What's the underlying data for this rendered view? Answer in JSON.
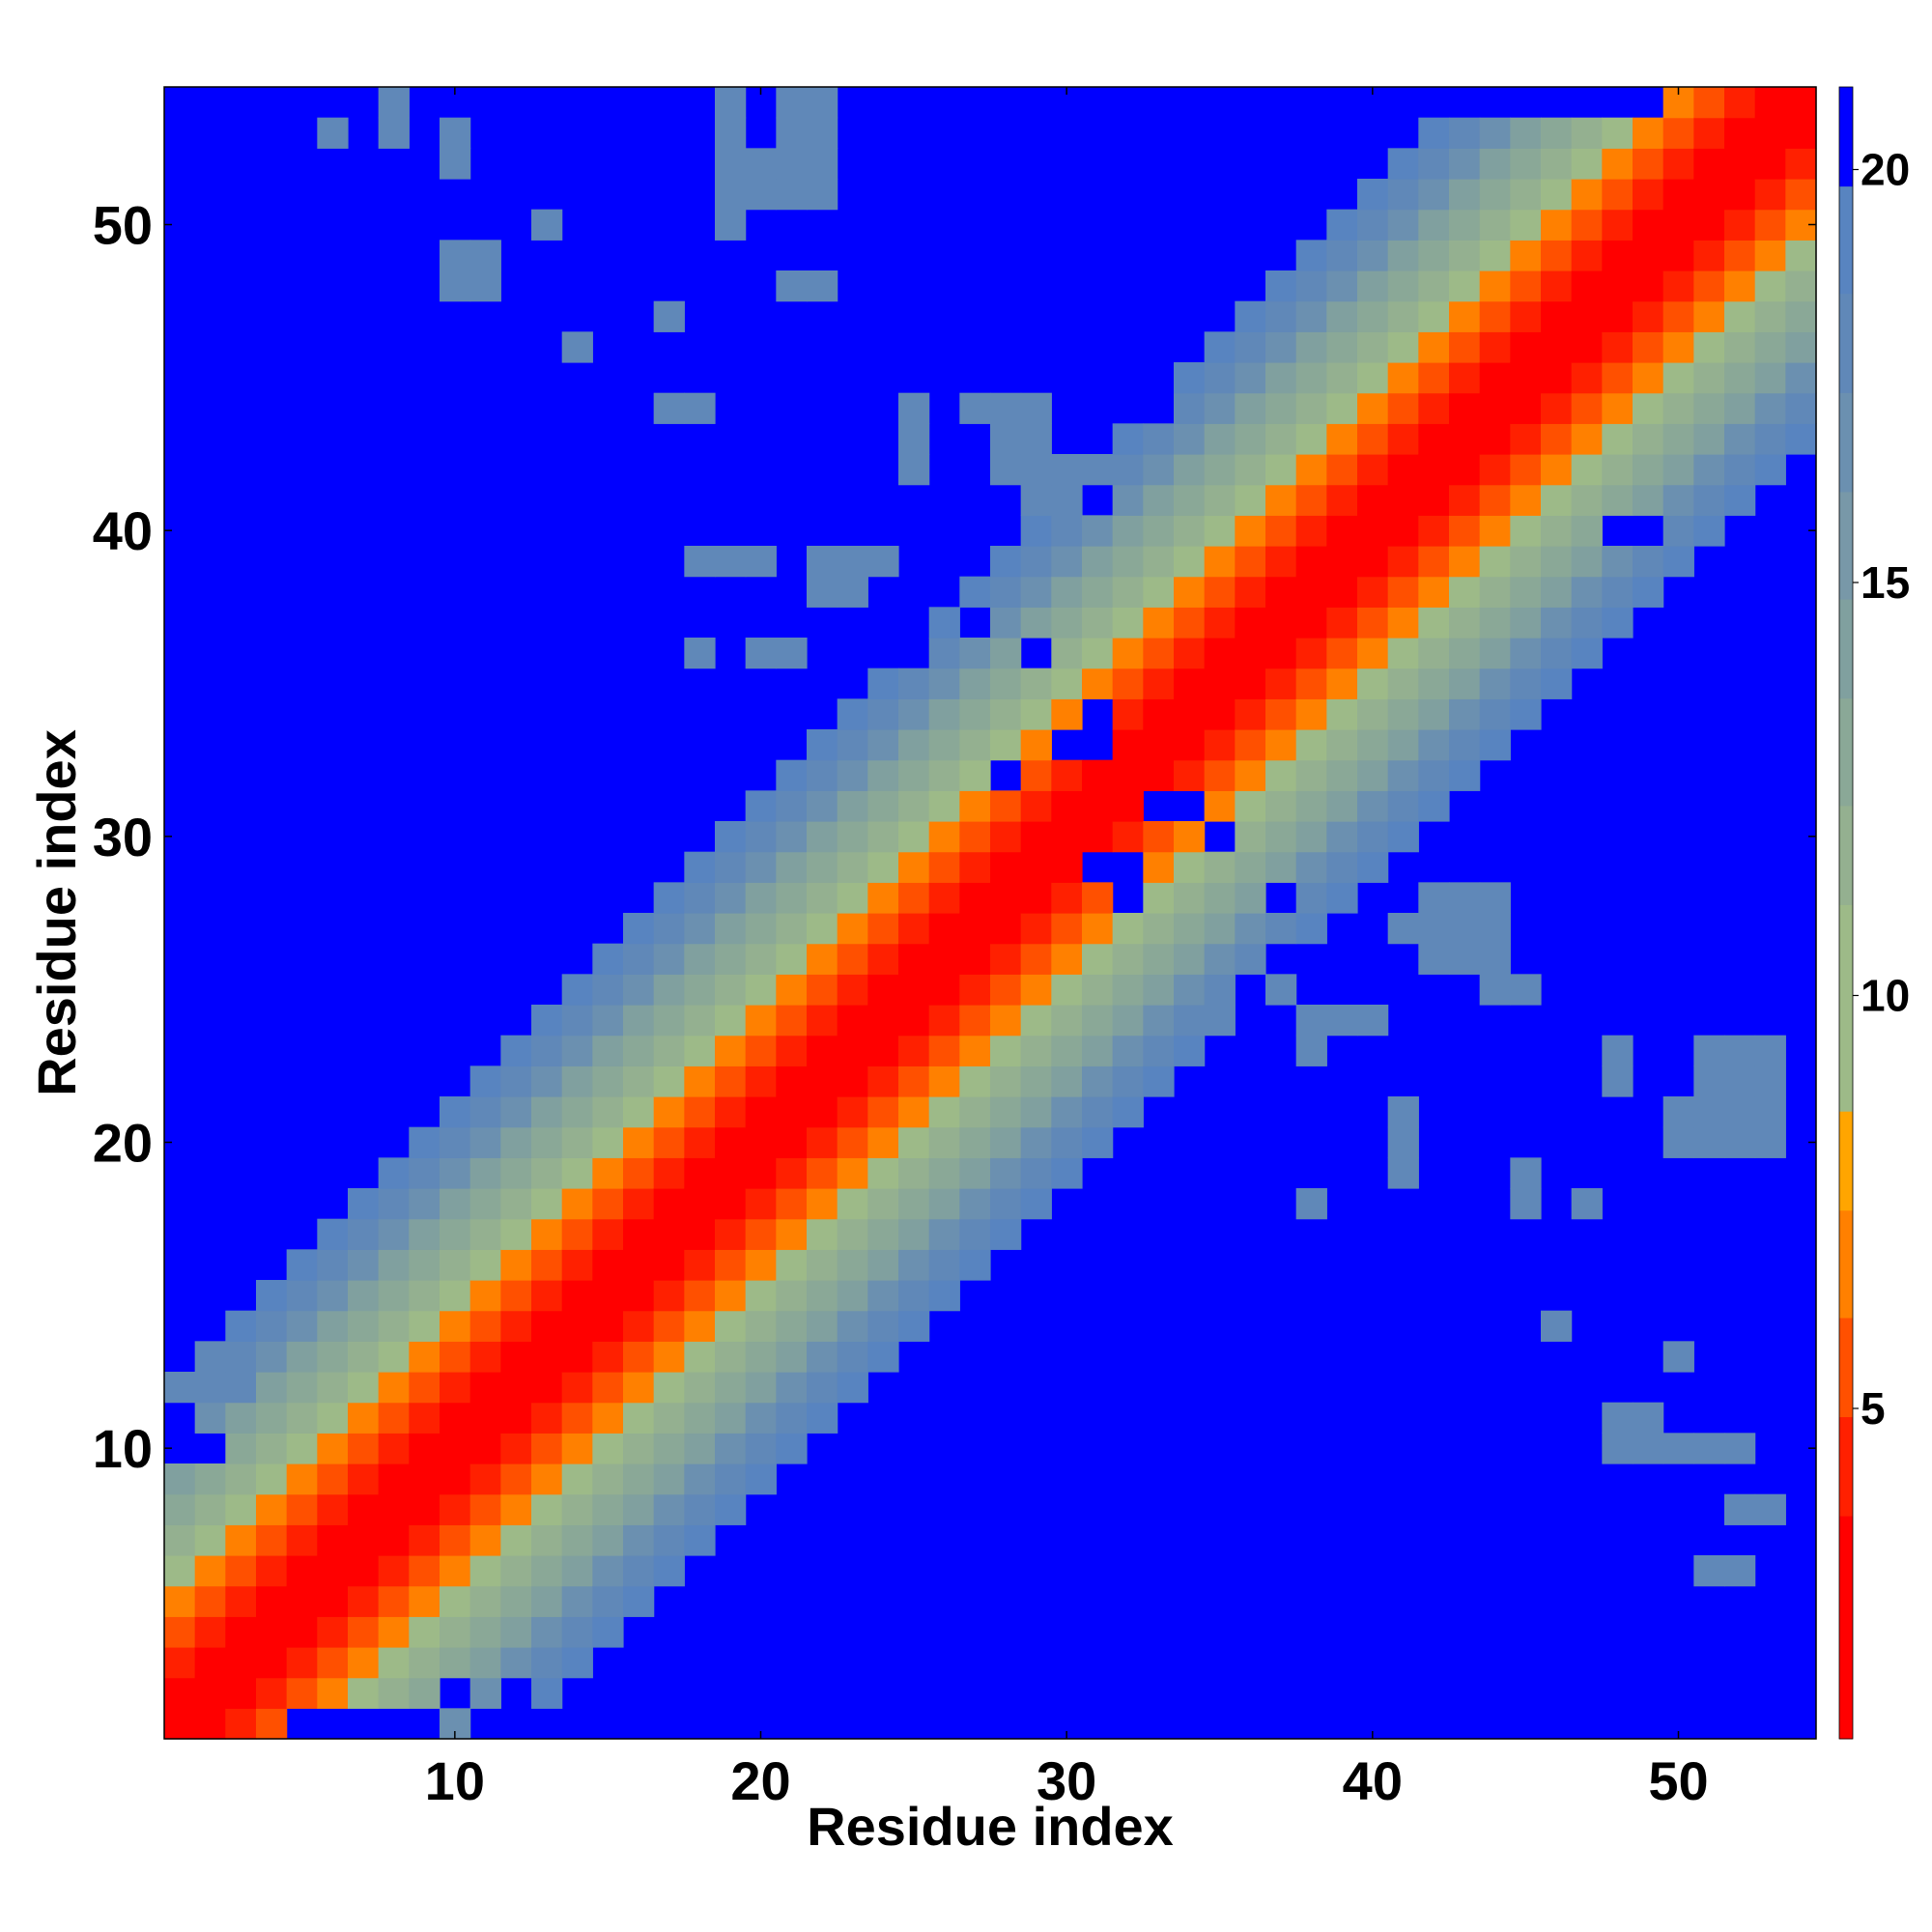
{
  "chart_data": {
    "type": "heatmap",
    "title": "",
    "xlabel": "Residue index",
    "ylabel": "Residue index",
    "x_range": [
      0.5,
      54.5
    ],
    "y_range": [
      0.5,
      54.5
    ],
    "n_residues": 54,
    "x_ticks": [
      10,
      20,
      30,
      40,
      50
    ],
    "y_ticks": [
      10,
      20,
      30,
      40,
      50
    ],
    "colorbar": {
      "ticks": [
        5,
        10,
        15,
        20
      ],
      "range": [
        1,
        21
      ],
      "levels": [
        {
          "max": 2.4,
          "color": "#ff0000"
        },
        {
          "max": 3.7,
          "color": "#ff0000"
        },
        {
          "max": 4.9,
          "color": "#ff2000"
        },
        {
          "max": 6.1,
          "color": "#ff5000"
        },
        {
          "max": 7.4,
          "color": "#ff8000"
        },
        {
          "max": 8.6,
          "color": "#ffa500"
        },
        {
          "max": 9.9,
          "color": "#9dba88"
        },
        {
          "max": 11.1,
          "color": "#9dba88"
        },
        {
          "max": 12.3,
          "color": "#94b090"
        },
        {
          "max": 13.6,
          "color": "#8aa897"
        },
        {
          "max": 14.8,
          "color": "#80a09f"
        },
        {
          "max": 16.1,
          "color": "#7898a8"
        },
        {
          "max": 17.3,
          "color": "#6b90b0"
        },
        {
          "max": 18.5,
          "color": "#6088b8"
        },
        {
          "max": 19.8,
          "color": "#5884c0"
        },
        {
          "max": 21,
          "color": "#0000ff"
        }
      ]
    },
    "values_description_rule": {
      "note_row_banding": "value grows with |i-j|"
    },
    "cutoff": 20.5,
    "extra_near_cells": [
      [
        6,
        53
      ],
      [
        8,
        54
      ],
      [
        8,
        53
      ],
      [
        10,
        53
      ],
      [
        10,
        52
      ],
      [
        10,
        49
      ],
      [
        10,
        48
      ],
      [
        11,
        49
      ],
      [
        11,
        48
      ],
      [
        13,
        50
      ],
      [
        19,
        54
      ],
      [
        19,
        53
      ],
      [
        19,
        52
      ],
      [
        19,
        51
      ],
      [
        19,
        50
      ],
      [
        20,
        52
      ],
      [
        20,
        51
      ],
      [
        21,
        54
      ],
      [
        21,
        53
      ],
      [
        21,
        52
      ],
      [
        21,
        51
      ],
      [
        21,
        48
      ],
      [
        22,
        54
      ],
      [
        22,
        53
      ],
      [
        22,
        52
      ],
      [
        22,
        51
      ],
      [
        22,
        48
      ],
      [
        17,
        47
      ],
      [
        14,
        46
      ],
      [
        17,
        44
      ],
      [
        18,
        44
      ],
      [
        25,
        44
      ],
      [
        25,
        43
      ],
      [
        25,
        42
      ],
      [
        27,
        44
      ],
      [
        28,
        44
      ],
      [
        29,
        44
      ],
      [
        28,
        43
      ],
      [
        29,
        43
      ],
      [
        28,
        42
      ],
      [
        29,
        42
      ],
      [
        30,
        42
      ],
      [
        31,
        42
      ],
      [
        29,
        41
      ],
      [
        30,
        41
      ],
      [
        18,
        39
      ],
      [
        19,
        39
      ],
      [
        20,
        39
      ],
      [
        22,
        39
      ],
      [
        23,
        39
      ],
      [
        24,
        39
      ],
      [
        22,
        38
      ],
      [
        23,
        38
      ],
      [
        18,
        36
      ],
      [
        20,
        36
      ],
      [
        21,
        36
      ],
      [
        34,
        24
      ],
      [
        35,
        24
      ],
      [
        36,
        25
      ],
      [
        36,
        26
      ],
      [
        37,
        25
      ],
      [
        37,
        26
      ],
      [
        38,
        24
      ],
      [
        39,
        24
      ],
      [
        38,
        23
      ],
      [
        40,
        23
      ],
      [
        40,
        24
      ],
      [
        40,
        22
      ],
      [
        41,
        27
      ],
      [
        42,
        26
      ],
      [
        43,
        26
      ],
      [
        44,
        26
      ],
      [
        42,
        28
      ],
      [
        43,
        28
      ],
      [
        44,
        28
      ],
      [
        42,
        27
      ],
      [
        43,
        27
      ],
      [
        44,
        27
      ],
      [
        44,
        25
      ],
      [
        42,
        24
      ],
      [
        43,
        24
      ],
      [
        45,
        25
      ],
      [
        38,
        18
      ],
      [
        41,
        19
      ],
      [
        41,
        20
      ],
      [
        41,
        21
      ],
      [
        45,
        19
      ],
      [
        45,
        18
      ],
      [
        47,
        18
      ],
      [
        46,
        14
      ],
      [
        48,
        22
      ],
      [
        48,
        23
      ],
      [
        51,
        22
      ],
      [
        52,
        22
      ],
      [
        53,
        22
      ],
      [
        51,
        21
      ],
      [
        52,
        21
      ],
      [
        53,
        21
      ],
      [
        50,
        21
      ],
      [
        50,
        20
      ],
      [
        51,
        20
      ],
      [
        52,
        20
      ],
      [
        53,
        20
      ],
      [
        52,
        23
      ],
      [
        53,
        23
      ],
      [
        51,
        23
      ],
      [
        48,
        11
      ],
      [
        49,
        11
      ],
      [
        48,
        10
      ],
      [
        49,
        10
      ],
      [
        50,
        10
      ],
      [
        51,
        10
      ],
      [
        52,
        10
      ],
      [
        52,
        8
      ],
      [
        53,
        8
      ],
      [
        51,
        6
      ],
      [
        52,
        6
      ],
      [
        50,
        13
      ],
      [
        3,
        13
      ],
      [
        2,
        13
      ],
      [
        1,
        12
      ],
      [
        2,
        12
      ],
      [
        3,
        12
      ]
    ],
    "far_cells_inside_band": [
      [
        1,
        10
      ],
      [
        2,
        10
      ],
      [
        1,
        11
      ],
      [
        5,
        1
      ],
      [
        6,
        1
      ],
      [
        7,
        1
      ],
      [
        8,
        1
      ],
      [
        9,
        1
      ],
      [
        11,
        1
      ],
      [
        12,
        2
      ],
      [
        10,
        2
      ],
      [
        12,
        1
      ],
      [
        17,
        3
      ],
      [
        16,
        3
      ],
      [
        27,
        43
      ],
      [
        24,
        43
      ],
      [
        24,
        42
      ],
      [
        31,
        41
      ],
      [
        26,
        39
      ],
      [
        22,
        40
      ],
      [
        21,
        39
      ],
      [
        20,
        38
      ],
      [
        21,
        37
      ],
      [
        23,
        37
      ],
      [
        24,
        37
      ],
      [
        25,
        37
      ],
      [
        27,
        37
      ],
      [
        25,
        36
      ],
      [
        29,
        36
      ],
      [
        31,
        34
      ],
      [
        30,
        33
      ],
      [
        31,
        33
      ],
      [
        28,
        32
      ],
      [
        33,
        31
      ],
      [
        34,
        31
      ],
      [
        35,
        30
      ],
      [
        31,
        29
      ],
      [
        32,
        29
      ],
      [
        32,
        28
      ],
      [
        37,
        28
      ],
      [
        37,
        26
      ],
      [
        36,
        25
      ],
      [
        37,
        23
      ],
      [
        38,
        22
      ],
      [
        38,
        21
      ],
      [
        39,
        22
      ],
      [
        40,
        22
      ],
      [
        40,
        23
      ],
      [
        41,
        24
      ],
      [
        42,
        24
      ],
      [
        43,
        24
      ],
      [
        39,
        21
      ],
      [
        37,
        21
      ],
      [
        40,
        21
      ],
      [
        41,
        22
      ],
      [
        48,
        40
      ],
      [
        49,
        40
      ],
      [
        50,
        38
      ],
      [
        51,
        37
      ],
      [
        53,
        39
      ],
      [
        52,
        40
      ],
      [
        53,
        40
      ],
      [
        53,
        41
      ],
      [
        54,
        41
      ],
      [
        41,
        54
      ],
      [
        42,
        54
      ],
      [
        43,
        54
      ],
      [
        44,
        54
      ],
      [
        45,
        54
      ],
      [
        46,
        54
      ],
      [
        47,
        54
      ],
      [
        48,
        54
      ],
      [
        49,
        54
      ],
      [
        40,
        53
      ],
      [
        41,
        53
      ],
      [
        40,
        52
      ],
      [
        39,
        51
      ],
      [
        38,
        50
      ],
      [
        37,
        49
      ],
      [
        36,
        48
      ],
      [
        35,
        47
      ],
      [
        34,
        46
      ],
      [
        33,
        46
      ],
      [
        33,
        45
      ],
      [
        32,
        45
      ],
      [
        33,
        44
      ],
      [
        32,
        44
      ],
      [
        31,
        44
      ],
      [
        31,
        43
      ],
      [
        30,
        43
      ],
      [
        54,
        2
      ],
      [
        54,
        3
      ],
      [
        54,
        4
      ],
      [
        54,
        5
      ],
      [
        53,
        2
      ],
      [
        53,
        3
      ],
      [
        53,
        4
      ],
      [
        52,
        1
      ],
      [
        52,
        2
      ],
      [
        51,
        1
      ],
      [
        51,
        2
      ],
      [
        15,
        1
      ],
      [
        14,
        1
      ]
    ]
  }
}
